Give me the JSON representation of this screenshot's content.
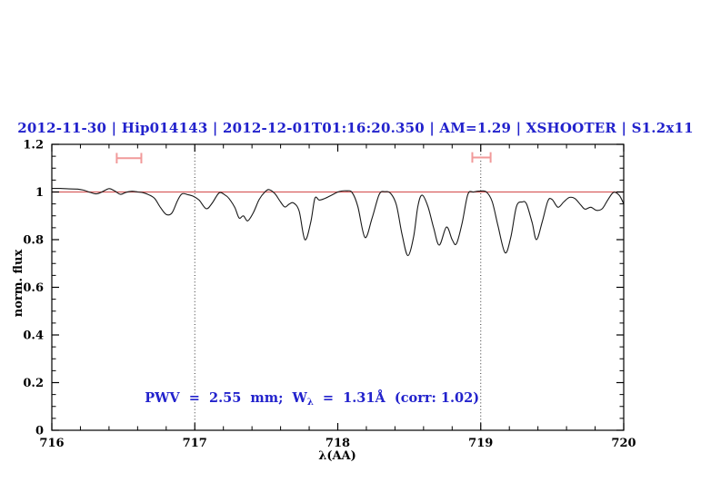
{
  "header": {
    "title": "2012-11-30 | Hip014143 | 2012-12-01T01:16:20.350 | AM=1.29 | XSHOOTER | S1.2x11"
  },
  "annotation": {
    "part1": "PWV  =  2.55  mm;  W",
    "subscript": "λ",
    "part2": "  =  1.31Å  (corr: 1.02)"
  },
  "colors": {
    "title_blue": "#2222cc",
    "annotation_blue": "#2222cc",
    "continuum_red": "#d95f5f",
    "marker_pink": "#f19a9a",
    "spectrum_black": "#191919",
    "axis_black": "#000000",
    "dotted_gray": "#333333",
    "background": "#ffffff"
  },
  "chart_data": {
    "type": "line",
    "title": "2012-11-30 | Hip014143 | 2012-12-01T01:16:20.350 | AM=1.29 | XSHOOTER | S1.2x11",
    "xlabel": "λ(AA)",
    "ylabel": "norm. flux",
    "xlim": [
      716,
      720
    ],
    "ylim": [
      0,
      1.2
    ],
    "grid": false,
    "x_ticks": [
      {
        "value": 716,
        "label": "716"
      },
      {
        "value": 717,
        "label": "717"
      },
      {
        "value": 718,
        "label": "718"
      },
      {
        "value": 719,
        "label": "719"
      },
      {
        "value": 720,
        "label": "720"
      }
    ],
    "x_minor_step": 0.2,
    "y_ticks": [
      {
        "value": 0,
        "label": "0"
      },
      {
        "value": 0.2,
        "label": "0.2"
      },
      {
        "value": 0.4,
        "label": "0.4"
      },
      {
        "value": 0.6,
        "label": "0.6"
      },
      {
        "value": 0.8,
        "label": "0.8"
      },
      {
        "value": 1,
        "label": "1"
      },
      {
        "value": 1.2,
        "label": "1.2"
      }
    ],
    "y_minor_step": 0.05,
    "continuum_level": 1.0,
    "dotted_lines_x": [
      717,
      719
    ],
    "ew_markers": [
      {
        "lambda": 716.54,
        "half_width_aa": 0.086,
        "flux": 1.142,
        "cap_half_height_flux": 0.022
      },
      {
        "lambda": 719.005,
        "half_width_aa": 0.064,
        "flux": 1.145,
        "cap_half_height_flux": 0.022
      }
    ],
    "series": [
      {
        "name": "normalized spectrum",
        "points": [
          [
            716.0,
            1.015
          ],
          [
            716.06,
            1.015
          ],
          [
            716.12,
            1.013
          ],
          [
            716.18,
            1.012
          ],
          [
            716.22,
            1.008
          ],
          [
            716.27,
            0.998
          ],
          [
            716.31,
            0.992
          ],
          [
            716.35,
            1.0
          ],
          [
            716.4,
            1.014
          ],
          [
            716.44,
            1.004
          ],
          [
            716.48,
            0.99
          ],
          [
            716.52,
            0.999
          ],
          [
            716.56,
            1.003
          ],
          [
            716.6,
            1.0
          ],
          [
            716.64,
            0.997
          ],
          [
            716.68,
            0.988
          ],
          [
            716.72,
            0.972
          ],
          [
            716.76,
            0.935
          ],
          [
            716.8,
            0.906
          ],
          [
            716.84,
            0.912
          ],
          [
            716.88,
            0.965
          ],
          [
            716.91,
            0.992
          ],
          [
            716.95,
            0.989
          ],
          [
            716.99,
            0.982
          ],
          [
            717.03,
            0.966
          ],
          [
            717.08,
            0.93
          ],
          [
            717.12,
            0.952
          ],
          [
            717.17,
            0.996
          ],
          [
            717.21,
            0.988
          ],
          [
            717.24,
            0.972
          ],
          [
            717.28,
            0.935
          ],
          [
            717.31,
            0.891
          ],
          [
            717.34,
            0.9
          ],
          [
            717.37,
            0.879
          ],
          [
            717.41,
            0.914
          ],
          [
            717.45,
            0.968
          ],
          [
            717.49,
            1.0
          ],
          [
            717.52,
            1.01
          ],
          [
            717.56,
            0.993
          ],
          [
            717.6,
            0.958
          ],
          [
            717.63,
            0.937
          ],
          [
            717.66,
            0.949
          ],
          [
            717.69,
            0.954
          ],
          [
            717.73,
            0.92
          ],
          [
            717.77,
            0.8
          ],
          [
            717.81,
            0.87
          ],
          [
            717.84,
            0.973
          ],
          [
            717.87,
            0.966
          ],
          [
            717.91,
            0.973
          ],
          [
            717.96,
            0.988
          ],
          [
            718.01,
            1.002
          ],
          [
            718.06,
            1.005
          ],
          [
            718.1,
            0.998
          ],
          [
            718.14,
            0.94
          ],
          [
            718.19,
            0.809
          ],
          [
            718.24,
            0.89
          ],
          [
            718.29,
            0.99
          ],
          [
            718.33,
            1.001
          ],
          [
            718.37,
            0.994
          ],
          [
            718.41,
            0.945
          ],
          [
            718.45,
            0.82
          ],
          [
            718.49,
            0.733
          ],
          [
            718.53,
            0.81
          ],
          [
            718.56,
            0.94
          ],
          [
            718.59,
            0.987
          ],
          [
            718.63,
            0.94
          ],
          [
            718.67,
            0.85
          ],
          [
            718.71,
            0.777
          ],
          [
            718.76,
            0.853
          ],
          [
            718.8,
            0.8
          ],
          [
            718.83,
            0.783
          ],
          [
            718.87,
            0.87
          ],
          [
            718.91,
            0.99
          ],
          [
            718.95,
            1.0
          ],
          [
            719.0,
            1.004
          ],
          [
            719.04,
            1.0
          ],
          [
            719.08,
            0.96
          ],
          [
            719.12,
            0.86
          ],
          [
            719.17,
            0.745
          ],
          [
            719.21,
            0.81
          ],
          [
            719.25,
            0.94
          ],
          [
            719.29,
            0.958
          ],
          [
            719.32,
            0.95
          ],
          [
            719.36,
            0.87
          ],
          [
            719.39,
            0.8
          ],
          [
            719.43,
            0.875
          ],
          [
            719.47,
            0.963
          ],
          [
            719.5,
            0.968
          ],
          [
            719.54,
            0.936
          ],
          [
            719.58,
            0.958
          ],
          [
            719.62,
            0.977
          ],
          [
            719.66,
            0.972
          ],
          [
            719.7,
            0.945
          ],
          [
            719.73,
            0.928
          ],
          [
            719.77,
            0.936
          ],
          [
            719.81,
            0.923
          ],
          [
            719.85,
            0.93
          ],
          [
            719.89,
            0.968
          ],
          [
            719.93,
            0.999
          ],
          [
            719.97,
            0.985
          ],
          [
            720.0,
            0.95
          ]
        ]
      }
    ],
    "annotation_text": "PWV = 2.55 mm; Wλ = 1.31Å (corr: 1.02)"
  }
}
